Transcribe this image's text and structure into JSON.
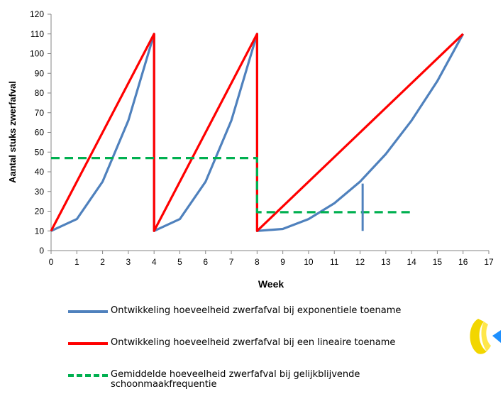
{
  "chart_data": {
    "type": "line",
    "title": "",
    "xlabel": "Week",
    "ylabel": "Aantal stuks zwerfafval",
    "xlim": [
      0,
      17
    ],
    "ylim": [
      0,
      120
    ],
    "x_ticks": [
      0,
      1,
      2,
      3,
      4,
      5,
      6,
      7,
      8,
      9,
      10,
      11,
      12,
      13,
      14,
      15,
      16,
      17
    ],
    "y_ticks": [
      0,
      10,
      20,
      30,
      40,
      50,
      60,
      70,
      80,
      90,
      100,
      110,
      120
    ],
    "grid": false,
    "legend_position": "bottom",
    "series": [
      {
        "name": "Ontwikkeling hoeveelheid zwerfafval bij exponentiele toename",
        "color": "#4f81bd",
        "style": "solid",
        "points": [
          [
            0,
            10
          ],
          [
            1,
            16
          ],
          [
            2,
            35
          ],
          [
            3,
            66
          ],
          [
            4,
            110
          ],
          [
            4,
            10
          ],
          [
            5,
            16
          ],
          [
            6,
            35
          ],
          [
            7,
            66
          ],
          [
            8,
            110
          ],
          [
            8,
            10
          ],
          [
            9,
            11
          ],
          [
            10,
            16
          ],
          [
            11,
            24
          ],
          [
            12,
            35
          ],
          [
            13,
            49
          ],
          [
            14,
            66
          ],
          [
            15,
            86
          ],
          [
            16,
            110
          ]
        ]
      },
      {
        "name": "Ontwikkeling hoeveelheid zwerfafval bij een lineaire toename",
        "color": "#ff0000",
        "style": "solid",
        "points": [
          [
            0,
            10
          ],
          [
            4,
            110
          ],
          [
            4,
            10
          ],
          [
            8,
            110
          ],
          [
            8,
            10
          ],
          [
            16,
            110
          ]
        ]
      },
      {
        "name": "Gemiddelde hoeveelheid zwerfafval bij gelijkblijvende schoonmaakfrequentie",
        "color": "#00b050",
        "style": "dashed",
        "points": [
          [
            0,
            47
          ],
          [
            8,
            47
          ],
          [
            8,
            19.5
          ],
          [
            14,
            19.5
          ]
        ]
      }
    ],
    "annotations": [
      {
        "type": "vertical-line",
        "x": 12.1,
        "y_from": 10,
        "y_to": 34,
        "color": "#4f81bd"
      }
    ]
  },
  "legend": {
    "items": [
      {
        "label": "Ontwikkeling hoeveelheid zwerfafval bij exponentiele toename",
        "color": "#4f81bd",
        "style": "solid"
      },
      {
        "label": "Ontwikkeling hoeveelheid zwerfafval bij een lineaire toename",
        "color": "#ff0000",
        "style": "solid"
      },
      {
        "label": "Gemiddelde hoeveelheid zwerfafval bij gelijkblijvende schoonmaakfrequentie",
        "color": "#00b050",
        "style": "dashed"
      }
    ]
  },
  "logo": {
    "colors": [
      "#f2d600",
      "#1e90ff"
    ]
  }
}
